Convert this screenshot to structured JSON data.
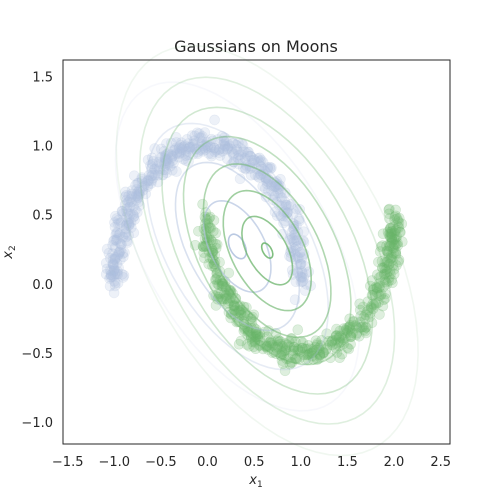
{
  "chart_data": {
    "type": "scatter",
    "title": "Gaussians on Moons",
    "xlabel": {
      "base": "x",
      "sub": "1"
    },
    "ylabel": {
      "base": "x",
      "sub": "2"
    },
    "xlim": [
      -1.55,
      2.6
    ],
    "ylim": [
      -1.16,
      1.62
    ],
    "xticks": [
      -1.5,
      -1.0,
      -0.5,
      0.0,
      0.5,
      1.0,
      1.5,
      2.0,
      2.5
    ],
    "xtick_labels": [
      "−1.5",
      "−1.0",
      "−0.5",
      "0.0",
      "0.5",
      "1.0",
      "1.5",
      "2.0",
      "2.5"
    ],
    "yticks": [
      -1.0,
      -0.5,
      0.0,
      0.5,
      1.0,
      1.5
    ],
    "ytick_labels": [
      "−1.0",
      "−0.5",
      "0.0",
      "0.5",
      "1.0",
      "1.5"
    ],
    "grid": false,
    "colors": {
      "moon_upper": "#aebfdd",
      "moon_lower": "#6ab46a",
      "axis_frame": "#262626"
    },
    "series": [
      {
        "kind": "moon",
        "arc": "upper",
        "center": [
          0.0,
          0.0
        ],
        "radius": 1.0,
        "theta_range_deg": [
          0,
          180
        ],
        "noise": 0.05,
        "n_points": 500,
        "color": "#aebfdd"
      },
      {
        "kind": "moon",
        "arc": "lower",
        "center": [
          1.0,
          0.5
        ],
        "radius": 1.0,
        "theta_range_deg": [
          180,
          360
        ],
        "noise": 0.05,
        "n_points": 500,
        "color": "#6ab46a"
      }
    ],
    "gaussians": [
      {
        "component": "blue",
        "mean": [
          0.32,
          0.27
        ],
        "orientation_deg": -40,
        "color": "#aebfdd",
        "contours": [
          [
            0.11,
            0.07
          ],
          [
            0.42,
            0.25
          ],
          [
            0.78,
            0.45
          ],
          [
            1.15,
            0.65
          ],
          [
            1.55,
            0.85
          ]
        ]
      },
      {
        "component": "green",
        "mean": [
          0.64,
          0.24
        ],
        "orientation_deg": -40,
        "color": "#6ab46a",
        "contours": [
          [
            0.07,
            0.04
          ],
          [
            0.32,
            0.18
          ],
          [
            0.55,
            0.33
          ],
          [
            0.8,
            0.47
          ],
          [
            1.05,
            0.62
          ],
          [
            1.32,
            0.78
          ],
          [
            1.6,
            0.94
          ],
          [
            1.9,
            1.1
          ]
        ]
      }
    ]
  }
}
